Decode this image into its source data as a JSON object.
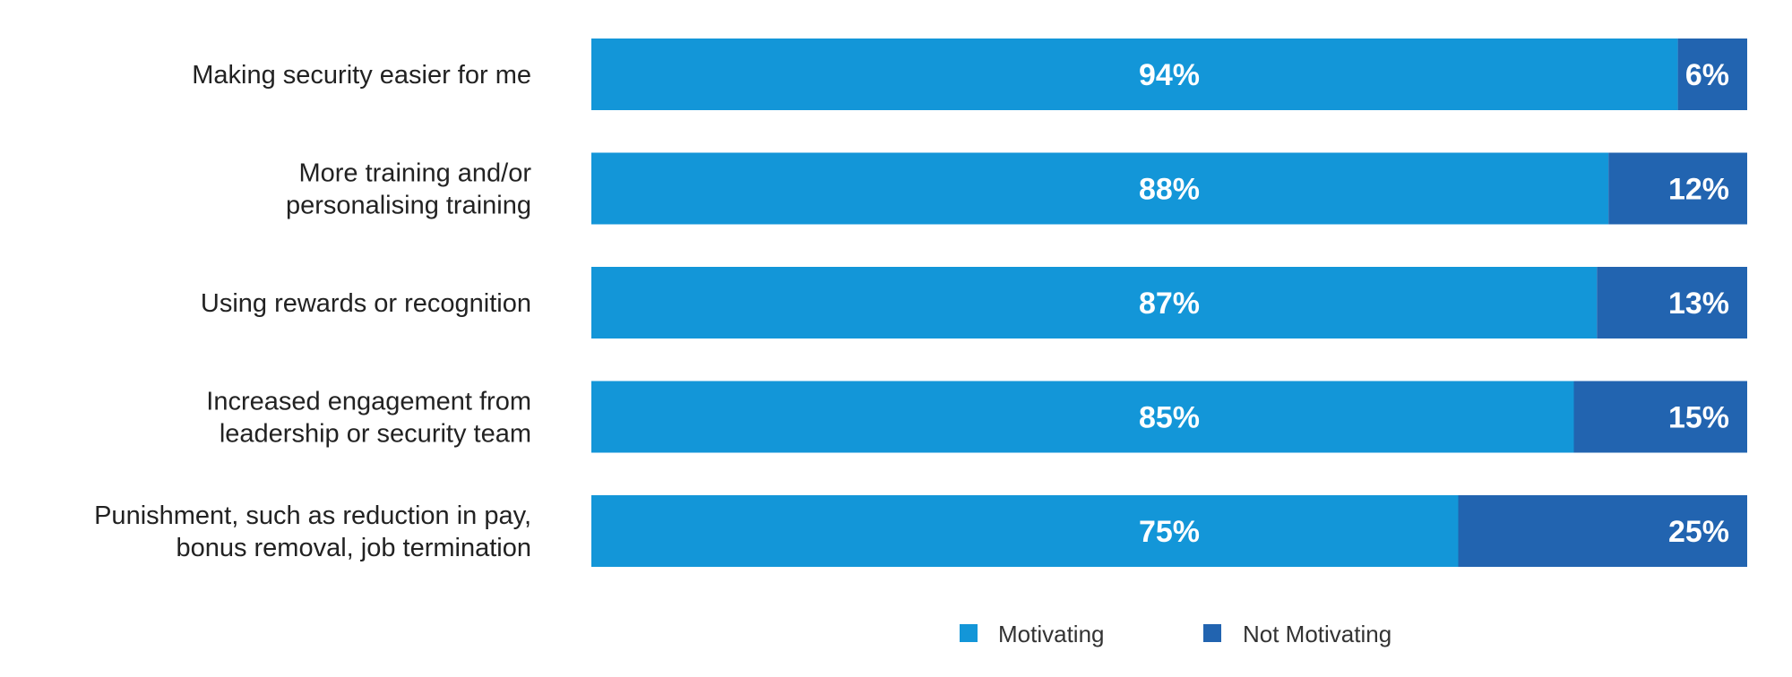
{
  "chart_data": {
    "type": "bar",
    "orientation": "horizontal",
    "stacked": true,
    "categories": [
      [
        "Making security easier for me"
      ],
      [
        "More training and/or",
        "personalising training"
      ],
      [
        "Using rewards or recognition"
      ],
      [
        "Increased engagement from",
        "leadership or security team"
      ],
      [
        "Punishment, such as reduction in pay,",
        "bonus removal, job termination"
      ]
    ],
    "series": [
      {
        "name": "Motivating",
        "color": "#1396d8",
        "values": [
          94,
          88,
          87,
          85,
          75
        ],
        "labels": [
          "94%",
          "88%",
          "87%",
          "85%",
          "75%"
        ]
      },
      {
        "name": "Not Motivating",
        "color": "#2264b0",
        "values": [
          6,
          12,
          13,
          15,
          25
        ],
        "labels": [
          "6%",
          "12%",
          "13%",
          "15%",
          "25%"
        ]
      }
    ],
    "xlim": [
      0,
      100
    ],
    "unit": "%",
    "grid": false,
    "legend_position": "bottom-center"
  }
}
